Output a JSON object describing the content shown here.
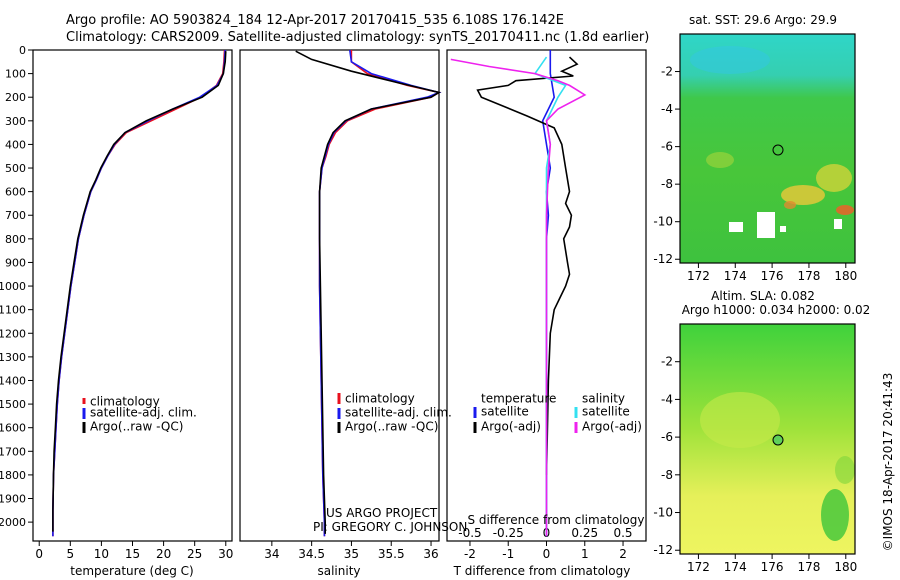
{
  "header": {
    "line1": "Argo profile: AO 5903824_184 12-Apr-2017 20170415_535 6.108S 176.142E",
    "line2": "Climatology: CARS2009. Satellite-adjusted climatology: synTS_20170411.nc (1.8d earlier)"
  },
  "credit": {
    "project": "US ARGO PROJECT",
    "pi": "PI: GREGORY C. JOHNSON",
    "imos": "©IMOS 18-Apr-2017 20:41:43"
  },
  "colors": {
    "climatology": "#e8101e",
    "satellite": "#1a1aee",
    "argo": "#000000",
    "satellite_s": "#33e0f0",
    "argo_s": "#ee22ee"
  },
  "chart_data": [
    {
      "id": "temperature",
      "type": "line",
      "xlabel": "temperature (deg C)",
      "xlim": [
        -1,
        31
      ],
      "xticks": [
        0,
        5,
        10,
        15,
        20,
        25,
        30
      ],
      "ylim": [
        2080,
        0
      ],
      "yticks": [
        0,
        100,
        200,
        300,
        400,
        500,
        600,
        700,
        800,
        900,
        1000,
        1100,
        1200,
        1300,
        1400,
        1500,
        1600,
        1700,
        1800,
        1900,
        2000
      ],
      "legend": [
        "climatology",
        "satellite-adj. clim.",
        "Argo(..raw -QC)"
      ],
      "series": [
        {
          "name": "climatology",
          "color": "climatology",
          "x": [
            29.8,
            29.7,
            29.5,
            28.5,
            26,
            22,
            18,
            14,
            12.2,
            11,
            10,
            9.2,
            8.3,
            7.2,
            6.3,
            5.7,
            5.1,
            4.6,
            4.1,
            3.6,
            3.2,
            2.9,
            2.7,
            2.5,
            2.3,
            2.2,
            2.2
          ],
          "y": [
            0,
            50,
            100,
            150,
            200,
            250,
            300,
            350,
            400,
            450,
            500,
            550,
            600,
            700,
            800,
            900,
            1000,
            1100,
            1200,
            1300,
            1400,
            1500,
            1600,
            1700,
            1800,
            1950,
            2060
          ]
        },
        {
          "name": "satellite-adj. clim.",
          "color": "satellite",
          "x": [
            29.9,
            29.8,
            29.6,
            28.6,
            25.8,
            21.5,
            17.5,
            13.8,
            12.1,
            11,
            10,
            9.2,
            8.3,
            7.2,
            6.3,
            5.7,
            5.1,
            4.6,
            4.1,
            3.6,
            3.2,
            2.9,
            2.7,
            2.5,
            2.3,
            2.2,
            2.2
          ],
          "y": [
            0,
            50,
            100,
            150,
            200,
            250,
            300,
            350,
            400,
            450,
            500,
            550,
            600,
            700,
            800,
            900,
            1000,
            1100,
            1200,
            1300,
            1400,
            1500,
            1600,
            1700,
            1800,
            1950,
            2060
          ]
        },
        {
          "name": "Argo(..raw -QC)",
          "color": "argo",
          "x": [
            30.0,
            29.9,
            29.6,
            28.8,
            26.2,
            21.5,
            17.2,
            13.8,
            12.0,
            10.9,
            9.9,
            9.1,
            8.2,
            7.1,
            6.2,
            5.6,
            5.0,
            4.5,
            4.0,
            3.5,
            3.1,
            2.8,
            2.6,
            2.4,
            2.3,
            2.2,
            2.2
          ],
          "y": [
            5,
            50,
            100,
            150,
            200,
            250,
            300,
            350,
            400,
            450,
            500,
            550,
            600,
            700,
            800,
            900,
            1000,
            1100,
            1200,
            1300,
            1400,
            1500,
            1600,
            1700,
            1800,
            1950,
            2040
          ]
        }
      ]
    },
    {
      "id": "salinity",
      "type": "line",
      "xlabel": "salinity",
      "xlim": [
        33.6,
        36.1
      ],
      "xticks": [
        34,
        34.5,
        35,
        35.5,
        36
      ],
      "xtick_labels": [
        "34",
        "34.5",
        "35",
        "35.5",
        "36"
      ],
      "ylim": [
        2080,
        0
      ],
      "legend": [
        "climatology",
        "satellite-adj. clim.",
        "Argo(..raw -QC)"
      ],
      "series": [
        {
          "name": "climatology",
          "color": "climatology",
          "x": [
            35.0,
            35.0,
            35.2,
            35.7,
            36.1,
            36.0,
            35.3,
            34.95,
            34.8,
            34.72,
            34.68,
            34.63,
            34.6,
            34.6,
            34.6,
            34.61,
            34.62,
            34.63,
            34.64,
            34.65,
            34.66,
            34.66
          ],
          "y": [
            0,
            50,
            100,
            150,
            180,
            200,
            250,
            300,
            350,
            400,
            450,
            500,
            600,
            800,
            1000,
            1200,
            1400,
            1600,
            1800,
            1900,
            2000,
            2060
          ]
        },
        {
          "name": "satellite-adj. clim.",
          "color": "satellite",
          "x": [
            34.98,
            35.0,
            35.25,
            35.75,
            36.1,
            35.95,
            35.25,
            34.93,
            34.78,
            34.71,
            34.67,
            34.63,
            34.6,
            34.6,
            34.6,
            34.61,
            34.62,
            34.63,
            34.64,
            34.65,
            34.66,
            34.66
          ],
          "y": [
            0,
            50,
            100,
            150,
            180,
            200,
            250,
            300,
            350,
            400,
            450,
            500,
            600,
            800,
            1000,
            1200,
            1400,
            1600,
            1800,
            1900,
            2000,
            2060
          ]
        },
        {
          "name": "Argo(..raw -QC)",
          "color": "argo",
          "x": [
            34.3,
            34.5,
            35.0,
            35.6,
            36.1,
            36.0,
            35.25,
            34.92,
            34.77,
            34.7,
            34.66,
            34.62,
            34.6,
            34.6,
            34.61,
            34.62,
            34.63,
            34.64,
            34.65,
            34.66,
            34.67,
            34.67
          ],
          "y": [
            5,
            40,
            90,
            140,
            180,
            200,
            250,
            300,
            350,
            400,
            450,
            500,
            600,
            800,
            1000,
            1200,
            1400,
            1600,
            1800,
            1900,
            2000,
            2050
          ]
        }
      ]
    },
    {
      "id": "difference",
      "type": "line",
      "xlabel": "T difference from climatology",
      "xlabel_top": "S difference from climatology",
      "xlim": [
        -2.6,
        2.6
      ],
      "xticks": [
        -2,
        -1,
        0,
        1,
        2
      ],
      "xticks_s": [
        -0.5,
        -0.25,
        0,
        0.25,
        0.5
      ],
      "xtick_labels_s": [
        "-0.5",
        "-0.25",
        "0",
        "0.25",
        "0.5"
      ],
      "ylim": [
        2080,
        0
      ],
      "legend_headers": [
        "temperature",
        "salinity"
      ],
      "legend": [
        "satellite",
        "Argo(-adj)",
        "satellite",
        "Argo(-adj)"
      ],
      "series": [
        {
          "name": "satellite",
          "color": "satellite",
          "x": [
            0.1,
            0.1,
            0.2,
            -0.1,
            0.0,
            0.1,
            0.0,
            0.05,
            0.0,
            0.0,
            0.0,
            0.0,
            0.0,
            0.0,
            0.0,
            0.0,
            0.0,
            0.0
          ],
          "y": [
            0,
            100,
            200,
            300,
            400,
            500,
            600,
            700,
            800,
            900,
            1000,
            1200,
            1400,
            1600,
            1800,
            1900,
            2000,
            2060
          ]
        },
        {
          "name": "Argo(-adj)",
          "color": "argo",
          "x": [
            0.6,
            0.8,
            0.4,
            0.7,
            -0.8,
            -1.0,
            -1.8,
            -1.7,
            -0.5,
            0.2,
            0.4,
            0.5,
            0.6,
            0.5,
            0.65,
            0.6,
            0.45,
            0.5,
            0.55,
            0.6,
            0.5,
            0.35,
            0.2,
            0.1,
            0.05,
            0.0
          ],
          "y": [
            30,
            60,
            90,
            110,
            130,
            150,
            170,
            200,
            280,
            330,
            400,
            500,
            600,
            650,
            700,
            750,
            800,
            850,
            900,
            950,
            1000,
            1050,
            1100,
            1200,
            1400,
            1800
          ]
        },
        {
          "name": "salinity satellite",
          "color": "satellite_s",
          "x": [
            0.0,
            -0.3,
            0.5,
            0.3,
            0.0,
            0.1,
            0.0,
            0.0,
            0.0,
            0.0,
            0.0,
            0.0,
            0.0,
            0.0
          ],
          "y": [
            30,
            100,
            150,
            200,
            300,
            400,
            500,
            700,
            900,
            1100,
            1400,
            1700,
            2000,
            2060
          ]
        },
        {
          "name": "salinity Argo(-adj)",
          "color": "argo_s",
          "x": [
            -2.5,
            -1.5,
            -0.3,
            0.3,
            0.6,
            0.8,
            1.0,
            0.3,
            0.0,
            0.1,
            0.05,
            0.0,
            0.0,
            0.0,
            0.0,
            0.0
          ],
          "y": [
            40,
            70,
            100,
            130,
            150,
            170,
            190,
            250,
            300,
            400,
            500,
            700,
            1000,
            1400,
            1800,
            2060
          ]
        }
      ]
    },
    {
      "id": "sst-map",
      "type": "heatmap",
      "title": "sat. SST: 29.6 Argo: 29.9",
      "xlim": [
        171,
        180.5
      ],
      "ylim": [
        -12.2,
        0
      ],
      "xticks": [
        172,
        174,
        176,
        178,
        180
      ],
      "yticks": [
        -2,
        -4,
        -6,
        -8,
        -10,
        -12
      ],
      "marker": {
        "lon": 176.1,
        "lat": -6.1
      }
    },
    {
      "id": "sla-map",
      "type": "heatmap",
      "title": "Altim. SLA: 0.082",
      "subtitle": "Argo h1000: 0.034 h2000: 0.02",
      "xlim": [
        171,
        180.5
      ],
      "ylim": [
        -12.2,
        0
      ],
      "xticks": [
        172,
        174,
        176,
        178,
        180
      ],
      "yticks": [
        -2,
        -4,
        -6,
        -8,
        -10,
        -12
      ],
      "marker": {
        "lon": 176.1,
        "lat": -6.1
      }
    }
  ]
}
